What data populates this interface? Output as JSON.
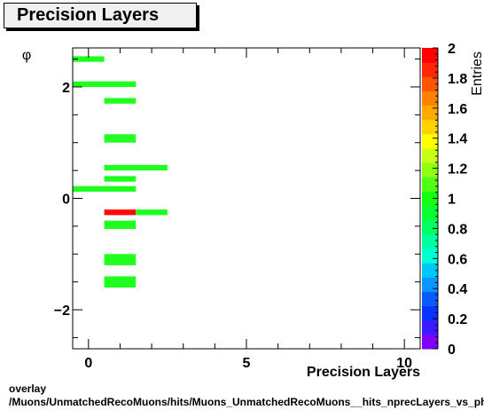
{
  "title": "Precision Layers",
  "footer": {
    "line1": "overlay",
    "line2": "/Muons/UnmatchedRecoMuons/hits/Muons_UnmatchedRecoMuons__hits_nprecLayers_vs_phi"
  },
  "chart_data": {
    "type": "heatmap",
    "title": "Precision Layers",
    "xlabel": "Precision Layers",
    "ylabel": "φ",
    "zlabel": "Entries",
    "xlim": [
      -0.5,
      10.5
    ],
    "ylim": [
      -2.7,
      2.7
    ],
    "zlim": [
      0,
      2
    ],
    "x_ticks": [
      0,
      5,
      10
    ],
    "y_ticks": [
      -2,
      0,
      2
    ],
    "z_ticks": [
      0,
      0.2,
      0.4,
      0.6,
      0.8,
      1,
      1.2,
      1.4,
      1.6,
      1.8,
      2
    ],
    "x_tick_labels": [
      "0",
      "5",
      "10"
    ],
    "y_tick_labels": [
      "−2",
      "0",
      "2"
    ],
    "z_tick_labels": [
      "0",
      "0.2",
      "0.4",
      "0.6",
      "0.8",
      "1",
      "1.2",
      "1.4",
      "1.6",
      "1.8",
      "2"
    ],
    "cells": [
      {
        "x": [
          -0.5,
          0.5
        ],
        "y": [
          2.45,
          2.55
        ],
        "value": 1
      },
      {
        "x": [
          -0.5,
          1.5
        ],
        "y": [
          2.0,
          2.1
        ],
        "value": 1
      },
      {
        "x": [
          0.5,
          1.5
        ],
        "y": [
          1.7,
          1.8
        ],
        "value": 1
      },
      {
        "x": [
          0.5,
          1.5
        ],
        "y": [
          1.05,
          1.15
        ],
        "value": 1
      },
      {
        "x": [
          0.5,
          1.5
        ],
        "y": [
          1.0,
          1.05
        ],
        "value": 1
      },
      {
        "x": [
          0.5,
          2.5
        ],
        "y": [
          0.5,
          0.6
        ],
        "value": 1
      },
      {
        "x": [
          0.5,
          1.5
        ],
        "y": [
          0.3,
          0.4
        ],
        "value": 1
      },
      {
        "x": [
          -0.5,
          1.5
        ],
        "y": [
          0.12,
          0.22
        ],
        "value": 1
      },
      {
        "x": [
          0.5,
          1.5
        ],
        "y": [
          -0.3,
          -0.2
        ],
        "value": 2
      },
      {
        "x": [
          1.5,
          2.5
        ],
        "y": [
          -0.3,
          -0.2
        ],
        "value": 1
      },
      {
        "x": [
          0.5,
          1.5
        ],
        "y": [
          -0.55,
          -0.4
        ],
        "value": 1
      },
      {
        "x": [
          0.5,
          1.5
        ],
        "y": [
          -1.2,
          -1.0
        ],
        "value": 1
      },
      {
        "x": [
          0.5,
          1.5
        ],
        "y": [
          -1.6,
          -1.4
        ],
        "value": 1
      }
    ],
    "colors": {
      "low": "#1fff1f",
      "high": "#ff0a0a",
      "palette": [
        "#8000ff",
        "#3c1cff",
        "#0a32ff",
        "#0a5aff",
        "#0a96ff",
        "#00c8ff",
        "#00ffd4",
        "#00ffa0",
        "#00ff64",
        "#0aff32",
        "#14ff14",
        "#50ff14",
        "#90ff14",
        "#c8ff14",
        "#ffff00",
        "#ffd200",
        "#ffaa00",
        "#ff8200",
        "#ff5500",
        "#ff2800",
        "#ff0000"
      ]
    },
    "grid": false,
    "legend": "colorbar-right"
  }
}
